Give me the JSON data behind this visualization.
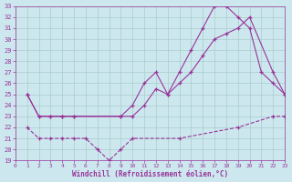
{
  "bg_color": "#cce8ee",
  "line_color": "#993399",
  "grid_color": "#aacccc",
  "xlabel": "Windchill (Refroidissement éolien,°C)",
  "xlim": [
    0,
    23
  ],
  "ylim": [
    19,
    33
  ],
  "yticks": [
    19,
    20,
    21,
    22,
    23,
    24,
    25,
    26,
    27,
    28,
    29,
    30,
    31,
    32,
    33
  ],
  "xticks": [
    0,
    1,
    2,
    3,
    4,
    5,
    6,
    7,
    8,
    9,
    10,
    11,
    12,
    13,
    14,
    15,
    16,
    17,
    18,
    19,
    20,
    21,
    22,
    23
  ],
  "line1_x": [
    1,
    2,
    3,
    4,
    5,
    9,
    10,
    11,
    12,
    13,
    14,
    15,
    16,
    17,
    18,
    19,
    20,
    21,
    22,
    23
  ],
  "line1_y": [
    25,
    23,
    23,
    23,
    23,
    23,
    24,
    26,
    27,
    25,
    27,
    29,
    31,
    33,
    33,
    32,
    31,
    27,
    26,
    25
  ],
  "line2_x": [
    1,
    2,
    3,
    4,
    5,
    9,
    10,
    11,
    12,
    13,
    14,
    15,
    16,
    17,
    18,
    19,
    20,
    22,
    23
  ],
  "line2_y": [
    25,
    23,
    23,
    23,
    23,
    23,
    23,
    24,
    25.5,
    25,
    26,
    27,
    28.5,
    30,
    30.5,
    31,
    32,
    27,
    25
  ],
  "line3_x": [
    1,
    2,
    3,
    4,
    5,
    6,
    7,
    8,
    9,
    10,
    14,
    19,
    22,
    23
  ],
  "line3_y": [
    22,
    21,
    21,
    21,
    21,
    21,
    20,
    19,
    20,
    21,
    21,
    22,
    23,
    23
  ],
  "line3_style": "--"
}
